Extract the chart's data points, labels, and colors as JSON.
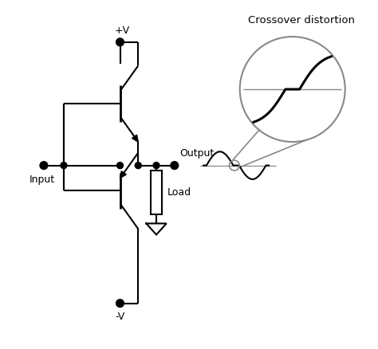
{
  "bg_color": "#ffffff",
  "line_color": "#000000",
  "gray_color": "#888888",
  "title": "Crossover distortion",
  "label_input": "Input",
  "label_output": "Output",
  "label_load": "Load",
  "label_pv": "+V",
  "label_nv": "-V",
  "fig_width": 4.74,
  "fig_height": 4.38,
  "dpi": 100
}
